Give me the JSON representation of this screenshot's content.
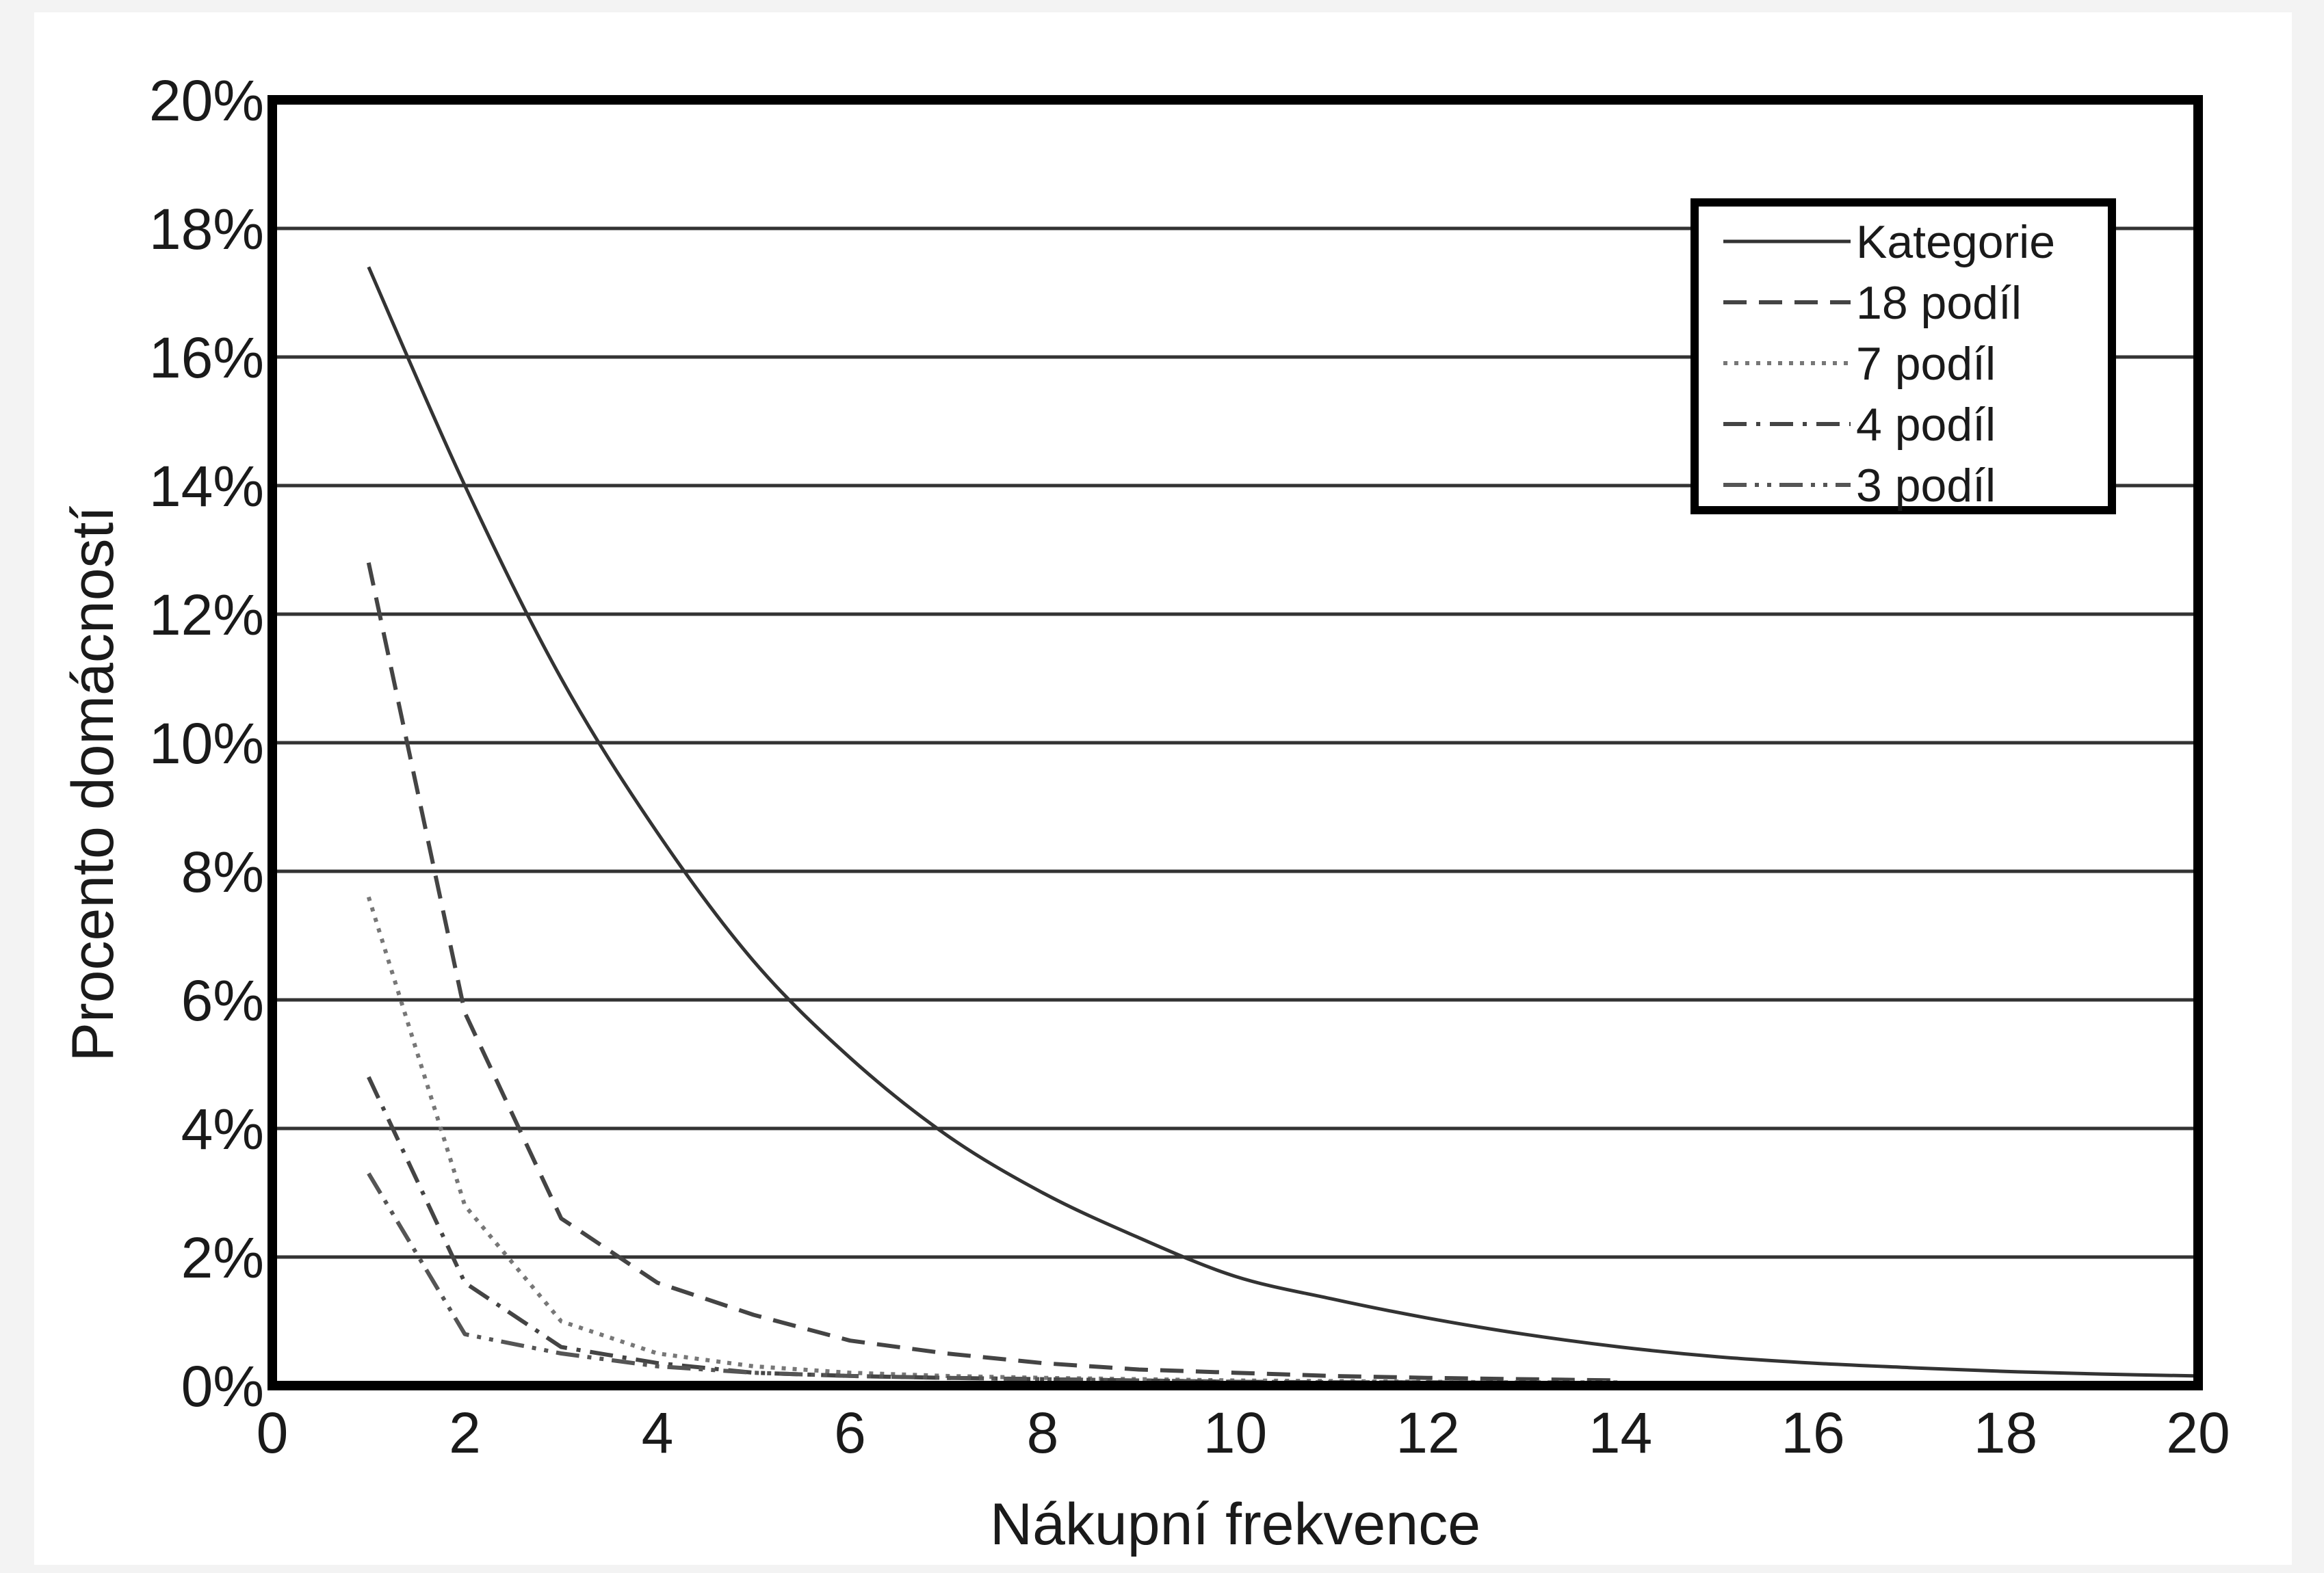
{
  "chart_data": {
    "type": "line",
    "title": "",
    "xlabel": "Nákupní frekvence",
    "ylabel": "Procento domácností",
    "xlim": [
      0,
      20
    ],
    "ylim": [
      0,
      20
    ],
    "x_ticks": [
      "0",
      "2",
      "4",
      "6",
      "8",
      "10",
      "12",
      "14",
      "16",
      "18",
      "20"
    ],
    "y_ticks": [
      "0%",
      "2%",
      "4%",
      "6%",
      "8%",
      "10%",
      "12%",
      "14%",
      "16%",
      "18%",
      "20%"
    ],
    "grid": "horizontal",
    "legend_position": "top-right",
    "series": [
      {
        "name": "Kategorie",
        "style": "solid",
        "color": "#333333",
        "x": [
          1,
          2,
          3,
          4,
          5,
          6,
          7,
          8,
          9,
          10,
          11,
          12,
          13,
          14,
          15,
          16,
          17,
          18,
          19,
          20
        ],
        "y": [
          17.4,
          14.0,
          11.0,
          8.6,
          6.6,
          5.1,
          3.9,
          3.0,
          2.3,
          1.7,
          1.35,
          1.05,
          0.8,
          0.6,
          0.45,
          0.35,
          0.28,
          0.22,
          0.18,
          0.15
        ]
      },
      {
        "name": "18 podíl",
        "style": "dashed",
        "color": "#444444",
        "x": [
          1,
          2,
          3,
          4,
          5,
          6,
          7,
          8,
          9,
          10,
          11,
          12,
          13,
          14
        ],
        "y": [
          12.8,
          5.8,
          2.6,
          1.6,
          1.1,
          0.7,
          0.5,
          0.35,
          0.25,
          0.2,
          0.15,
          0.12,
          0.1,
          0.08
        ]
      },
      {
        "name": "7 podíl",
        "style": "dotted",
        "color": "#777777",
        "x": [
          1,
          2,
          3,
          4,
          5,
          6,
          7,
          8,
          9,
          10,
          11,
          12,
          13,
          14
        ],
        "y": [
          7.6,
          2.8,
          1.0,
          0.5,
          0.3,
          0.2,
          0.15,
          0.12,
          0.1,
          0.08,
          0.07,
          0.06,
          0.05,
          0.05
        ]
      },
      {
        "name": "4 podíl",
        "style": "dashdot",
        "color": "#444444",
        "x": [
          1,
          2,
          3,
          4,
          5,
          6,
          7,
          8,
          9,
          10,
          11,
          12,
          13,
          14
        ],
        "y": [
          4.8,
          1.6,
          0.6,
          0.35,
          0.2,
          0.15,
          0.12,
          0.1,
          0.08,
          0.06,
          0.05,
          0.05,
          0.04,
          0.04
        ]
      },
      {
        "name": "3 podíl",
        "style": "dashdotdot",
        "color": "#555555",
        "x": [
          1,
          2,
          3,
          4,
          5,
          6,
          7,
          8,
          9,
          10,
          11,
          12,
          13,
          14
        ],
        "y": [
          3.3,
          0.8,
          0.5,
          0.3,
          0.2,
          0.15,
          0.12,
          0.1,
          0.08,
          0.06,
          0.05,
          0.05,
          0.04,
          0.04
        ]
      }
    ]
  }
}
